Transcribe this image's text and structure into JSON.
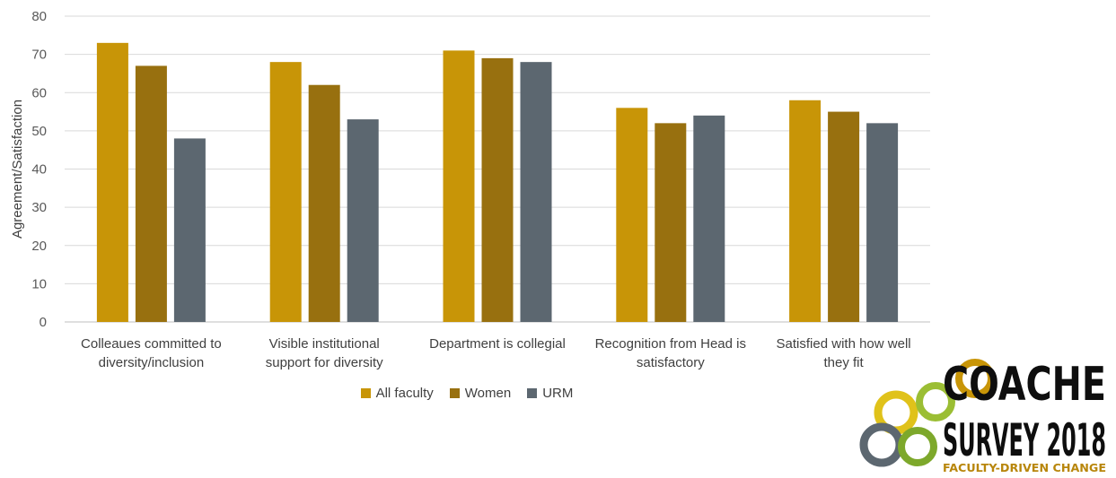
{
  "chart_data": {
    "type": "bar",
    "title": "",
    "xlabel": "",
    "ylabel": "Agreement/Satisfaction",
    "ylim": [
      0,
      80
    ],
    "yticks": [
      "0",
      "10",
      "20",
      "30",
      "40",
      "50",
      "60",
      "70",
      "80"
    ],
    "grid": true,
    "legend_position": "bottom",
    "categories": [
      [
        "Colleaues committed to",
        "diversity/inclusion"
      ],
      [
        "Visible institutional",
        "support for diversity"
      ],
      [
        "Department is collegial"
      ],
      [
        "Recognition from Head is",
        "satisfactory"
      ],
      [
        "Satisfied with how well",
        "they fit"
      ]
    ],
    "series": [
      {
        "name": "All faculty",
        "color": "#C89507",
        "values": [
          73,
          68,
          71,
          56,
          58
        ]
      },
      {
        "name": "Women",
        "color": "#98700F",
        "values": [
          67,
          62,
          69,
          52,
          55
        ]
      },
      {
        "name": "URM",
        "color": "#5C6770",
        "values": [
          48,
          53,
          68,
          54,
          52
        ]
      }
    ]
  },
  "logo": {
    "line1": "COACHE",
    "line2": "SURVEY 2018",
    "tagline": "FACULTY-DRIVEN CHANGE"
  }
}
